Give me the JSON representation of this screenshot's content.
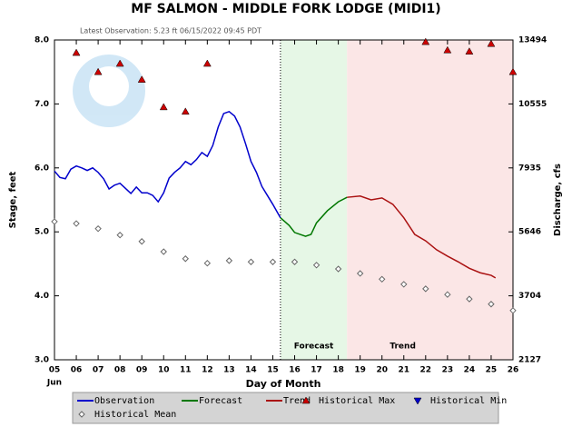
{
  "chart_data": {
    "type": "line",
    "title": "MF SALMON - MIDDLE FORK LODGE  (MIDI1)",
    "subtitle": "Latest Observation: 5.23 ft 06/15/2022 09:45 PDT",
    "ylabel": "Stage, feet",
    "y2label": "Discharge, cfs",
    "xlabel": "Day of Month",
    "month": "Jun",
    "xlim": [
      5,
      26
    ],
    "xticks": [
      {
        "value": 5,
        "label": "05"
      },
      {
        "value": 6,
        "label": "06"
      },
      {
        "value": 7,
        "label": "07"
      },
      {
        "value": 8,
        "label": "08"
      },
      {
        "value": 9,
        "label": "09"
      },
      10,
      11,
      12,
      13,
      14,
      15,
      16,
      17,
      18,
      19,
      20,
      21,
      22,
      23,
      24,
      25,
      26
    ],
    "ylim": [
      3,
      8
    ],
    "yticks": [
      {
        "value": 3,
        "label": "3.0"
      },
      {
        "value": 4,
        "label": "4.0"
      },
      {
        "value": 5,
        "label": "5.0"
      },
      {
        "value": 6,
        "label": "6.0"
      },
      {
        "value": 7,
        "label": "7.0"
      },
      {
        "value": 8,
        "label": "8.0"
      }
    ],
    "y2ticks": [
      2127,
      3704,
      5646,
      7935,
      10555,
      13494
    ],
    "regions": [
      {
        "label": "Forecast",
        "x": [
          15.35,
          18.4
        ],
        "color": "#e6f7e6"
      },
      {
        "label": "Trend",
        "x": [
          18.4,
          26
        ],
        "color": "#fbe6e6"
      }
    ],
    "series": [
      {
        "name": "Observation",
        "color": "#0000cc",
        "marker": "line",
        "x": [
          5,
          5.25,
          5.5,
          5.75,
          6,
          6.25,
          6.5,
          6.75,
          7,
          7.25,
          7.5,
          7.75,
          8,
          8.25,
          8.5,
          8.75,
          9,
          9.25,
          9.5,
          9.75,
          10,
          10.25,
          10.5,
          10.75,
          11,
          11.25,
          11.5,
          11.75,
          12,
          12.25,
          12.5,
          12.75,
          13,
          13.25,
          13.5,
          13.75,
          14,
          14.25,
          14.5,
          14.75,
          15,
          15.35
        ],
        "values": [
          5.95,
          5.85,
          5.83,
          5.98,
          6.03,
          6.0,
          5.96,
          6.0,
          5.93,
          5.83,
          5.67,
          5.73,
          5.76,
          5.68,
          5.6,
          5.7,
          5.61,
          5.61,
          5.57,
          5.47,
          5.61,
          5.84,
          5.93,
          6.0,
          6.1,
          6.05,
          6.13,
          6.24,
          6.18,
          6.35,
          6.64,
          6.85,
          6.88,
          6.81,
          6.64,
          6.38,
          6.1,
          5.93,
          5.71,
          5.57,
          5.43,
          5.22
        ]
      },
      {
        "name": "Forecast",
        "color": "#007700",
        "marker": "line",
        "x": [
          15.35,
          15.75,
          16,
          16.5,
          16.75,
          17,
          17.5,
          18,
          18.4
        ],
        "values": [
          5.22,
          5.1,
          4.99,
          4.93,
          4.96,
          5.14,
          5.33,
          5.47,
          5.54
        ]
      },
      {
        "name": "Trend",
        "color": "#aa1111",
        "marker": "line",
        "x": [
          18.4,
          19,
          19.5,
          20,
          20.5,
          21,
          21.5,
          22,
          22.5,
          23,
          23.5,
          24,
          24.5,
          25,
          25.2
        ],
        "values": [
          5.54,
          5.56,
          5.5,
          5.53,
          5.43,
          5.22,
          4.96,
          4.86,
          4.72,
          4.62,
          4.53,
          4.43,
          4.36,
          4.32,
          4.28
        ]
      },
      {
        "name": "Historical Max",
        "color": "#cc0000",
        "marker": "triangle-up",
        "x": [
          6,
          7,
          8,
          9,
          10,
          11,
          12,
          22,
          23,
          24,
          25,
          26
        ],
        "values": [
          7.8,
          7.5,
          7.63,
          7.38,
          6.95,
          6.88,
          7.63,
          7.97,
          7.84,
          7.82,
          7.94,
          7.5
        ]
      },
      {
        "name": "Historical Min",
        "color": "#0000cc",
        "marker": "triangle-down",
        "x": [],
        "values": []
      },
      {
        "name": "Historical Mean",
        "color": "#666666",
        "marker": "diamond",
        "x": [
          5,
          6,
          7,
          8,
          9,
          10,
          11,
          12,
          13,
          14,
          15,
          16,
          17,
          18,
          19,
          20,
          21,
          22,
          23,
          24,
          25,
          26
        ],
        "values": [
          5.16,
          5.13,
          5.05,
          4.95,
          4.85,
          4.69,
          4.58,
          4.51,
          4.55,
          4.53,
          4.53,
          4.53,
          4.48,
          4.42,
          4.35,
          4.26,
          4.18,
          4.11,
          4.02,
          3.95,
          3.87,
          3.77
        ]
      }
    ]
  }
}
